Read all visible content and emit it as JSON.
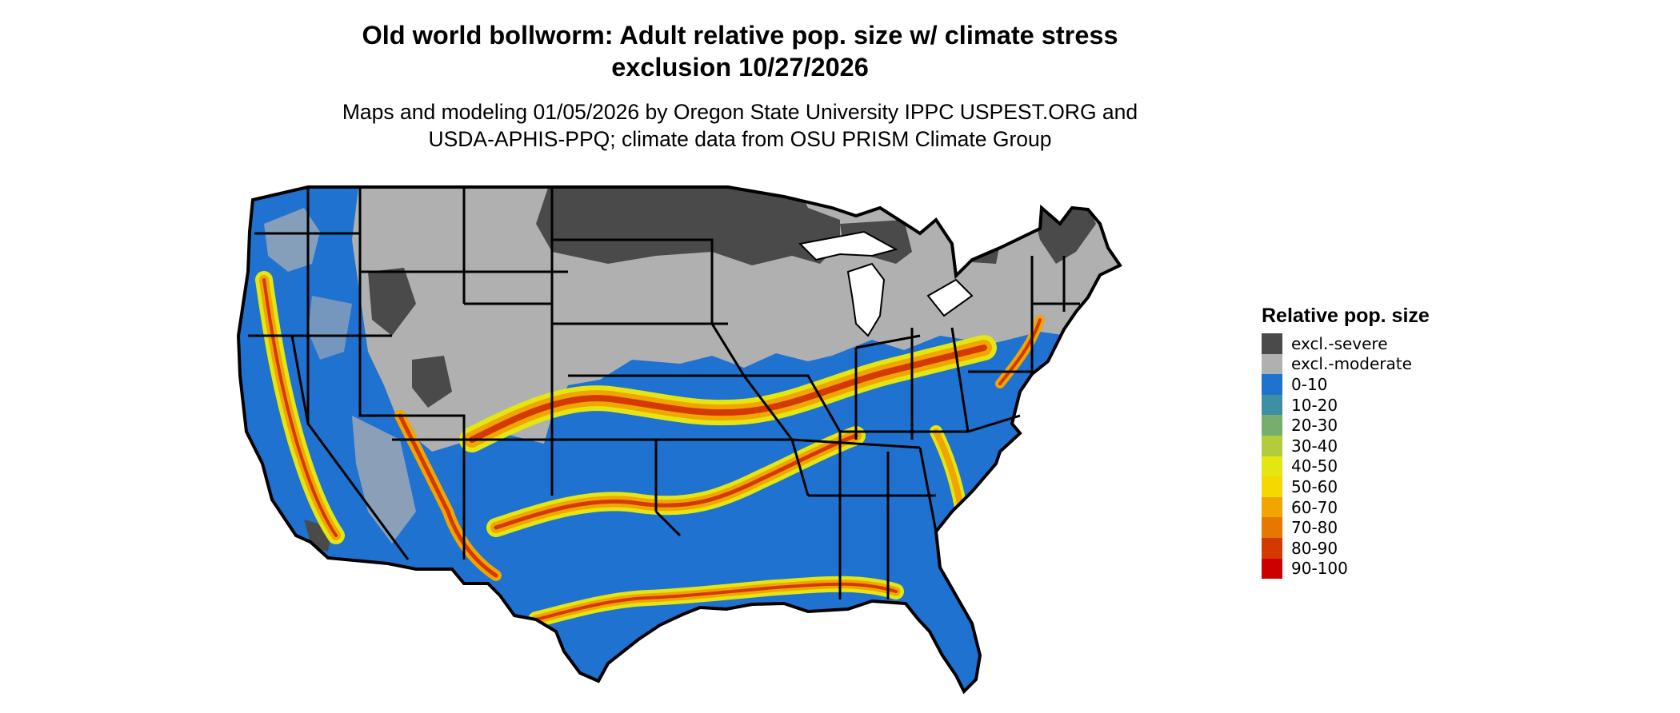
{
  "title_line1": "Old world bollworm: Adult relative pop. size w/ climate stress",
  "title_line2": "exclusion 10/27/2026",
  "subtitle_line1": "Maps and modeling 01/05/2026 by Oregon State University IPPC USPEST.ORG and",
  "subtitle_line2": "USDA-APHIS-PPQ; climate data from OSU PRISM Climate Group",
  "legend": {
    "title": "Relative pop. size",
    "items": [
      {
        "label": "excl.-severe",
        "color": "#4a4a4a"
      },
      {
        "label": "excl.-moderate",
        "color": "#b0b0b0"
      },
      {
        "label": "0-10",
        "color": "#1f72cf"
      },
      {
        "label": "10-20",
        "color": "#3e8fa3"
      },
      {
        "label": "20-30",
        "color": "#77ae6e"
      },
      {
        "label": "30-40",
        "color": "#b3cc3a"
      },
      {
        "label": "40-50",
        "color": "#e3e610"
      },
      {
        "label": "50-60",
        "color": "#f5d800"
      },
      {
        "label": "60-70",
        "color": "#f0a500"
      },
      {
        "label": "70-80",
        "color": "#e67800"
      },
      {
        "label": "80-90",
        "color": "#d43a00"
      },
      {
        "label": "90-100",
        "color": "#cc0000"
      }
    ]
  },
  "map": {
    "region": "Contiguous United States",
    "colors": {
      "excluded_severe": "#4a4a4a",
      "excluded_moderate": "#b0b0b0",
      "low": "#1f72cf",
      "yellow": "#e3e610",
      "orange": "#f0a500",
      "red": "#d43a00",
      "border": "#000000"
    }
  }
}
